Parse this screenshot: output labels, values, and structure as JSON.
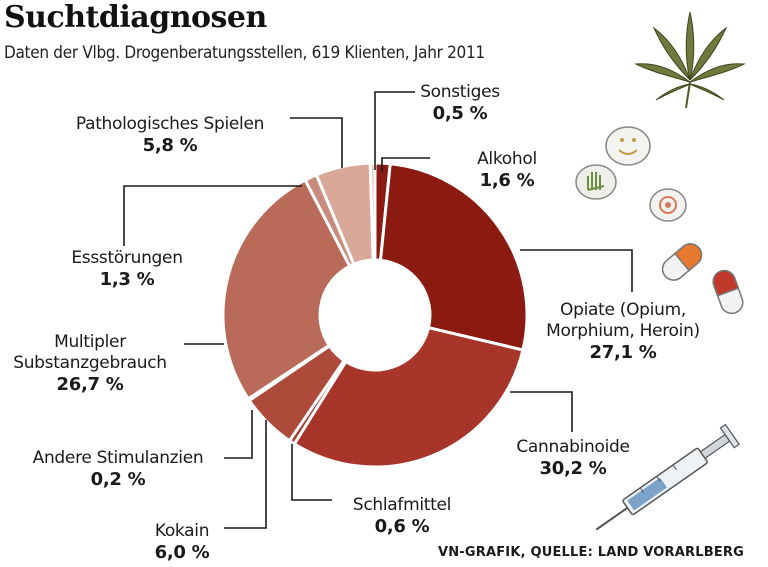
{
  "title": "Suchtdiagnosen",
  "subtitle": "Daten der Vlbg. Drogenberatungsstellen, 619 Klienten, Jahr 2011",
  "source": "VN-GRAFIK, QUELLE: LAND VORARLBERG",
  "chart_data": {
    "type": "pie",
    "style": "donut",
    "title": "Suchtdiagnosen",
    "subtitle": "Daten der Vlbg. Drogenberatungsstellen, 619 Klienten, Jahr 2011",
    "unit": "%",
    "slices": [
      {
        "label": "Alkohol",
        "value": 1.6,
        "value_label": "1,6 %",
        "color": "#8b1a10"
      },
      {
        "label": "Opiate (Opium, Morphium, Heroin)",
        "label_lines": [
          "Opiate (Opium,",
          "Morphium, Heroin)"
        ],
        "value": 27.1,
        "value_label": "27,1 %",
        "color": "#8b1a10"
      },
      {
        "label": "Cannabinoide",
        "value": 30.2,
        "value_label": "30,2 %",
        "color": "#a8352a"
      },
      {
        "label": "Schlafmittel",
        "value": 0.6,
        "value_label": "0,6 %",
        "color": "#a8352a"
      },
      {
        "label": "Kokain",
        "value": 6.0,
        "value_label": "6,0 %",
        "color": "#ad4a3a"
      },
      {
        "label": "Andere Stimulanzien",
        "value": 0.2,
        "value_label": "0,2 %",
        "color": "#ad4a3a"
      },
      {
        "label": "Multipler Substanzgebrauch",
        "label_lines": [
          "Multipler",
          "Substanzgebrauch"
        ],
        "value": 26.7,
        "value_label": "26,7 %",
        "color": "#b96a59"
      },
      {
        "label": "Essstörungen",
        "value": 1.3,
        "value_label": "1,3 %",
        "color": "#c98b7b"
      },
      {
        "label": "Pathologisches Spielen",
        "value": 5.8,
        "value_label": "5,8 %",
        "color": "#d9a898"
      },
      {
        "label": "Sonstiges",
        "value": 0.5,
        "value_label": "0,5 %",
        "color": "#e6c2b6"
      }
    ]
  },
  "decorations": [
    "cannabis-leaf-icon",
    "pills-icon",
    "capsules-icon",
    "syringe-icon"
  ]
}
